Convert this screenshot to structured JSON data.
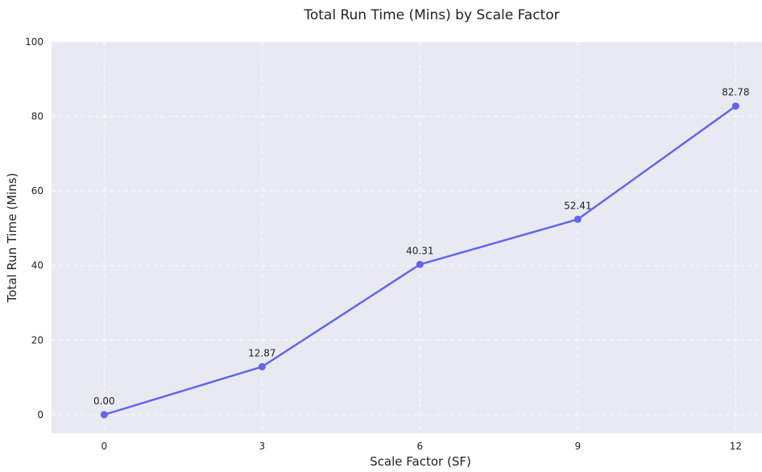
{
  "chart_data": {
    "type": "line",
    "title": "Total Run Time (Mins) by Scale Factor",
    "xlabel": "Scale Factor (SF)",
    "ylabel": "Total Run Time (Mins)",
    "x": [
      0,
      3,
      6,
      9,
      12
    ],
    "x_tick_labels": [
      "0",
      "3",
      "6",
      "9",
      "12"
    ],
    "y_ticks": [
      0,
      20,
      40,
      60,
      80,
      100
    ],
    "y_tick_labels": [
      "0",
      "20",
      "40",
      "60",
      "80",
      "100"
    ],
    "series": [
      {
        "values": [
          0.0,
          12.87,
          40.31,
          52.41,
          82.78
        ],
        "data_labels": [
          "0.00",
          "12.87",
          "40.31",
          "52.41",
          "82.78"
        ],
        "color": "#6366e8"
      }
    ],
    "xlim": [
      -1,
      12.5
    ],
    "ylim": [
      -5,
      100
    ],
    "grid": true,
    "plot_background": "#e9e9f2"
  }
}
